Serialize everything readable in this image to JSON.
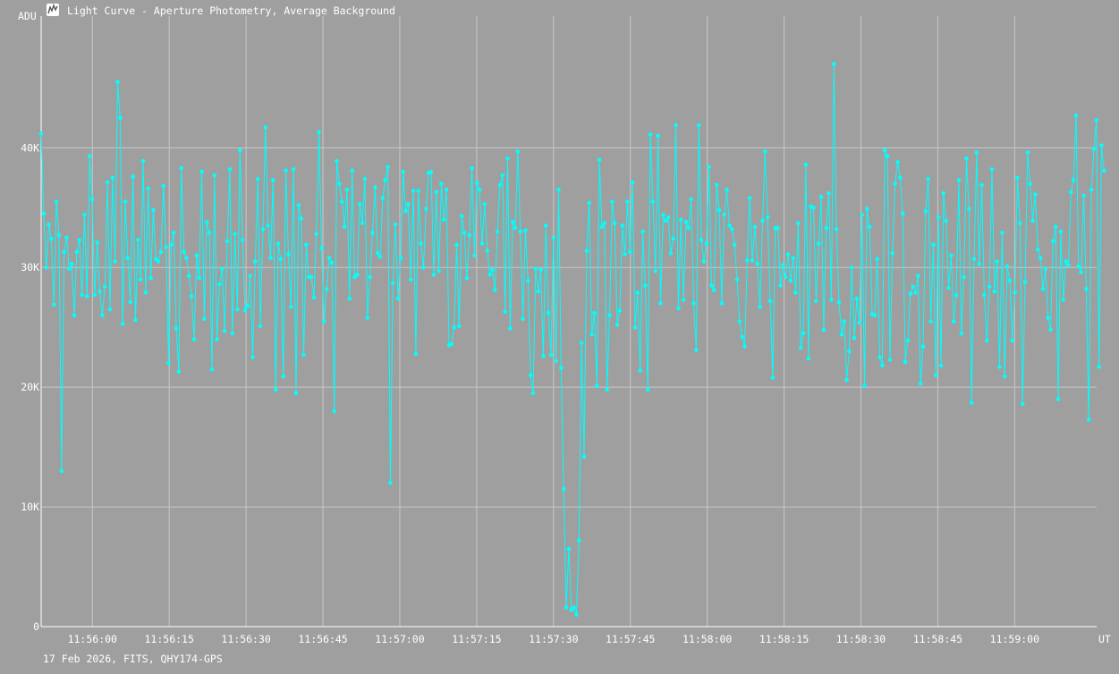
{
  "window": {
    "title": "Light Curve - Aperture Photometry, Average Background",
    "icon": "lightcurve-app-icon"
  },
  "footer": {
    "caption": "17 Feb 2026, FITS, QHY174-GPS"
  },
  "colors": {
    "background": "#9f9f9f",
    "grid": "#c8c8c8",
    "series": "#00ffff",
    "text": "#ffffff"
  },
  "chart_data": {
    "type": "line",
    "title": "",
    "xlabel": "UT",
    "ylabel": "ADU",
    "grid": true,
    "legend": "none",
    "ylim": [
      0,
      51000
    ],
    "xlim_seconds_after_11_55_50": [
      0,
      206
    ],
    "x_tick_labels": [
      "11:56:00",
      "11:56:15",
      "11:56:30",
      "11:56:45",
      "11:57:00",
      "11:57:15",
      "11:57:30",
      "11:57:45",
      "11:58:00",
      "11:58:15",
      "11:58:30",
      "11:58:45",
      "11:59:00"
    ],
    "x_tick_values_seconds": [
      10,
      25,
      40,
      55,
      70,
      85,
      100,
      115,
      130,
      145,
      160,
      175,
      190
    ],
    "y_tick_labels": [
      "0",
      "10K",
      "20K",
      "30K",
      "40K"
    ],
    "y_tick_values": [
      0,
      10000,
      20000,
      30000,
      40000
    ],
    "series": [
      {
        "name": "",
        "sample_interval_seconds": 0.4975,
        "values": [
          41200,
          34500,
          30000,
          33600,
          32400,
          26900,
          35500,
          32700,
          13000,
          31300,
          32500,
          29900,
          30300,
          26000,
          31300,
          32300,
          27700,
          34400,
          27600,
          39300,
          35700,
          27700,
          32100,
          28000,
          26000,
          28400,
          37100,
          26500,
          37500,
          30500,
          45500,
          42500,
          25300,
          35500,
          30800,
          27100,
          37600,
          25600,
          32300,
          29000,
          38900,
          27900,
          36600,
          29100,
          34800,
          30700,
          30500,
          31300,
          36800,
          31700,
          22000,
          31900,
          32900,
          24900,
          21300,
          38300,
          31300,
          30800,
          29300,
          27600,
          24000,
          31000,
          29100,
          38000,
          25700,
          33800,
          32900,
          21500,
          37700,
          24000,
          28600,
          29900,
          24700,
          32200,
          38200,
          24500,
          32800,
          26500,
          39800,
          32300,
          26400,
          26800,
          29300,
          22500,
          30500,
          37400,
          25100,
          33200,
          41700,
          33500,
          30800,
          37300,
          19800,
          32000,
          30700,
          20900,
          38100,
          31100,
          26700,
          38200,
          19500,
          35200,
          34100,
          22700,
          31900,
          29200,
          29200,
          27500,
          32800,
          41300,
          31600,
          25500,
          28200,
          30800,
          30400,
          18000,
          38900,
          37000,
          35500,
          33400,
          36500,
          27400,
          38100,
          29200,
          29400,
          35300,
          33700,
          37400,
          25800,
          29200,
          32900,
          36700,
          31200,
          30900,
          35800,
          37300,
          38400,
          12000,
          28700,
          33600,
          27400,
          30800,
          38000,
          34700,
          35300,
          29000,
          36400,
          22800,
          36400,
          32000,
          30000,
          34900,
          37900,
          38000,
          29400,
          36300,
          29700,
          37000,
          34000,
          36500,
          23500,
          23600,
          25000,
          31900,
          25100,
          34300,
          32900,
          29100,
          32700,
          38300,
          31000,
          37100,
          36500,
          32000,
          35300,
          31400,
          29400,
          29800,
          28100,
          33000,
          36900,
          37700,
          26300,
          39100,
          24900,
          33800,
          33300,
          39700,
          33000,
          25700,
          33100,
          28900,
          21000,
          19500,
          29900,
          28000,
          29800,
          22600,
          33500,
          26200,
          22700,
          32500,
          22200,
          36500,
          21600,
          11500,
          1600,
          6500,
          1400,
          1600,
          1000,
          7200,
          23700,
          14200,
          31400,
          35400,
          24400,
          26200,
          20100,
          39000,
          33400,
          33700,
          19800,
          26000,
          35500,
          33700,
          25200,
          26400,
          33500,
          31100,
          35500,
          31300,
          37100,
          25000,
          27900,
          21400,
          33000,
          28500,
          19800,
          41100,
          35500,
          29700,
          41000,
          27000,
          34400,
          33900,
          34200,
          31200,
          32400,
          41900,
          26600,
          34000,
          27300,
          33800,
          33300,
          35700,
          27000,
          23100,
          41900,
          32300,
          30500,
          32000,
          38400,
          28500,
          28100,
          36900,
          34800,
          27000,
          34400,
          36500,
          33500,
          33200,
          31900,
          29000,
          25500,
          24200,
          23400,
          30600,
          35800,
          30600,
          33400,
          30300,
          26700,
          33900,
          39700,
          34200,
          27200,
          20800,
          33300,
          33300,
          28500,
          30200,
          29200,
          31100,
          28900,
          30800,
          27900,
          33700,
          23300,
          24500,
          38600,
          22400,
          35100,
          35000,
          27200,
          32000,
          35900,
          24800,
          33300,
          36200,
          27300,
          47000,
          33200,
          27100,
          24400,
          25500,
          20600,
          23000,
          30000,
          24100,
          27400,
          25400,
          34400,
          20100,
          34900,
          33400,
          26100,
          26000,
          30700,
          22500,
          21800,
          39800,
          39300,
          22300,
          31200,
          37000,
          38800,
          37500,
          34500,
          22100,
          23900,
          27800,
          28400,
          27900,
          29300,
          20300,
          23400,
          34700,
          37400,
          25500,
          31900,
          21000,
          34200,
          21800,
          36200,
          33900,
          28300,
          31000,
          25500,
          27700,
          37300,
          24500,
          29200,
          39100,
          34900,
          18700,
          30700,
          39600,
          30300,
          36900,
          27700,
          23900,
          28400,
          38200,
          28000,
          30500,
          21700,
          32900,
          20900,
          30100,
          28900,
          23900,
          27900,
          37500,
          33700,
          18600,
          28800,
          39600,
          37000,
          33900,
          36100,
          31500,
          30800,
          28200,
          29900,
          25800,
          24800,
          32200,
          33400,
          19000,
          33000,
          27300,
          30500,
          30200,
          36300,
          37300,
          42700,
          30100,
          29600,
          36000,
          28200,
          17300,
          36500,
          39900,
          42300,
          21700,
          40200,
          38100
        ]
      }
    ]
  }
}
